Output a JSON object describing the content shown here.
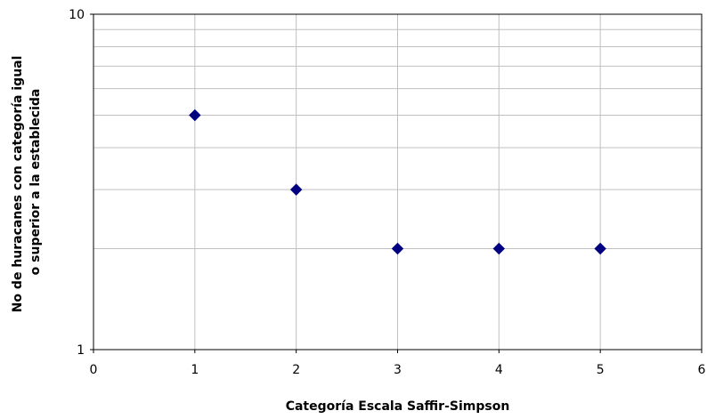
{
  "chart_data": {
    "type": "scatter",
    "title": "",
    "xlabel": "Categoría Escala Saffir-Simpson",
    "ylabel_lines": [
      "No de huracanes con categoría igual",
      "o superior a la establecida"
    ],
    "x_scale": "linear",
    "y_scale": "log",
    "xlim": [
      0,
      6
    ],
    "ylim": [
      1,
      10
    ],
    "x_ticks": [
      "0",
      "1",
      "2",
      "3",
      "4",
      "5",
      "6"
    ],
    "y_ticks": [
      "1",
      "10"
    ],
    "grid": true,
    "legend": "none",
    "marker": "diamond",
    "marker_color": "#000080",
    "points": [
      {
        "x": 1,
        "y": 5
      },
      {
        "x": 2,
        "y": 3
      },
      {
        "x": 3,
        "y": 2
      },
      {
        "x": 4,
        "y": 2
      },
      {
        "x": 5,
        "y": 2
      }
    ]
  }
}
